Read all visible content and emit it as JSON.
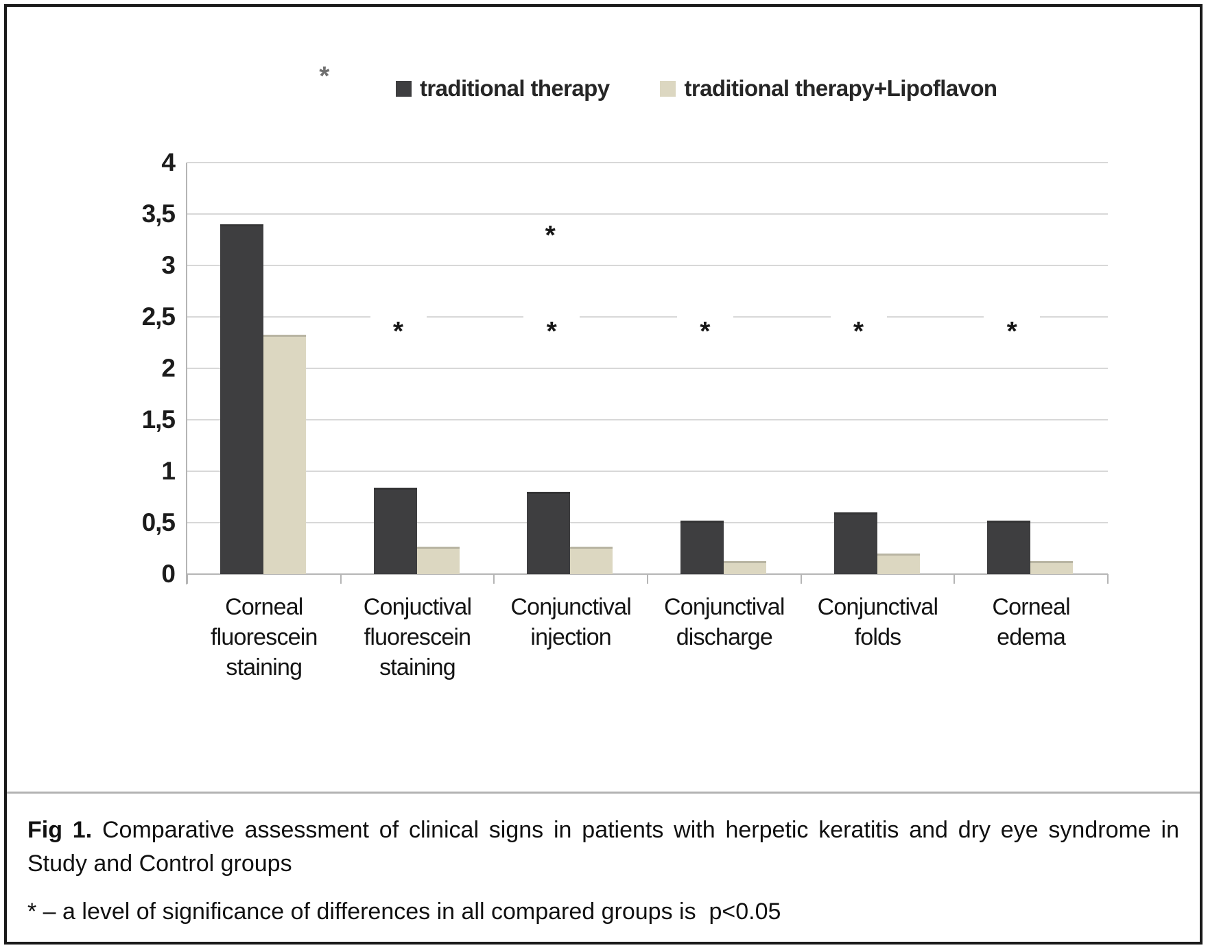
{
  "figure": {
    "caption_label": "Fig 1.",
    "caption_text": "Comparative assessment of clinical signs in patients with herpetic keratitis and dry eye syndrome in Study and Control groups",
    "footnote": "* – a level of significance of differences in all compared groups is  p<0.05"
  },
  "chart_data": {
    "type": "bar",
    "title": "",
    "xlabel": "",
    "ylabel": "",
    "categories": [
      "Corneal fluorescein staining",
      "Conjuctival fluorescein staining",
      "Conjunctival injection",
      "Conjunctival discharge",
      "Conjunctival folds",
      "Corneal edema"
    ],
    "categories_multiline": [
      [
        "Corneal",
        "fluorescein",
        "staining"
      ],
      [
        "Conjuctival",
        "fluorescein",
        "staining"
      ],
      [
        "Conjunctival",
        "injection"
      ],
      [
        "Conjunctival",
        "discharge"
      ],
      [
        "Conjunctival",
        "folds"
      ],
      [
        "Corneal",
        "edema"
      ]
    ],
    "series": [
      {
        "name": "traditional therapy",
        "color": "#3e3e40",
        "values": [
          3.4,
          0.84,
          0.8,
          0.52,
          0.6,
          0.52
        ]
      },
      {
        "name": "traditional therapy+Lipoflavon",
        "color": "#dcd7c1",
        "values": [
          2.33,
          0.27,
          0.27,
          0.13,
          0.2,
          0.13
        ]
      }
    ],
    "ylim": [
      0,
      4
    ],
    "ytick_step": 0.5,
    "ytick_labels": [
      "0",
      "0,5",
      "1",
      "1,5",
      "2",
      "2,5",
      "3",
      "3,5",
      "4"
    ],
    "grid": true,
    "legend_position": "top",
    "significance_symbol": "*",
    "significance_markers": {
      "row_level": {
        "categories": [
          1,
          2,
          3,
          4,
          5
        ],
        "value_level": 2.39
      },
      "extra": [
        {
          "category": 2,
          "value_level": 3.32,
          "muted": false
        },
        {
          "category": 0,
          "value_level": 4.87,
          "muted": true
        }
      ],
      "marker_color": "#161616",
      "muted_color": "#6f6f6f"
    }
  }
}
